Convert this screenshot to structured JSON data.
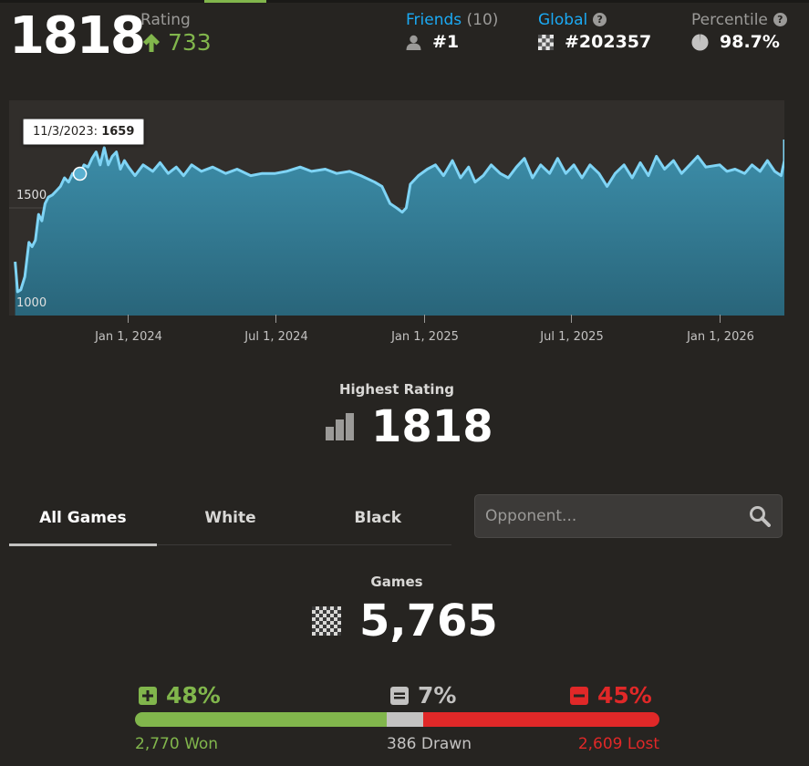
{
  "header": {
    "current_rating": "1818",
    "rating_label": "Rating",
    "rating_change": "733",
    "friends_label": "Friends",
    "friends_count": "(10)",
    "friends_rank": "#1",
    "global_label": "Global",
    "global_rank": "#202357",
    "percentile_label": "Percentile",
    "percentile_value": "98.7%"
  },
  "chart_data": {
    "type": "area",
    "x_tick_labels": [
      "Jan 1, 2024",
      "Jul 1, 2024",
      "Jan 1, 2025",
      "Jul 1, 2025",
      "Jan 1, 2026"
    ],
    "y_tick_labels": [
      "1000",
      "1500"
    ],
    "ylim": [
      950,
      1950
    ],
    "series": [
      {
        "points": [
          [
            "2023-08-15",
            1250
          ],
          [
            "2023-08-18",
            1110
          ],
          [
            "2023-08-22",
            1120
          ],
          [
            "2023-08-27",
            1180
          ],
          [
            "2023-09-01",
            1340
          ],
          [
            "2023-09-05",
            1320
          ],
          [
            "2023-09-09",
            1350
          ],
          [
            "2023-09-13",
            1470
          ],
          [
            "2023-09-17",
            1440
          ],
          [
            "2023-09-21",
            1520
          ],
          [
            "2023-09-25",
            1550
          ],
          [
            "2023-09-30",
            1560
          ],
          [
            "2023-10-05",
            1580
          ],
          [
            "2023-10-10",
            1600
          ],
          [
            "2023-10-15",
            1640
          ],
          [
            "2023-10-20",
            1620
          ],
          [
            "2023-10-25",
            1660
          ],
          [
            "2023-10-30",
            1640
          ],
          [
            "2023-11-03",
            1659
          ],
          [
            "2023-11-08",
            1700
          ],
          [
            "2023-11-13",
            1690
          ],
          [
            "2023-11-18",
            1730
          ],
          [
            "2023-11-23",
            1760
          ],
          [
            "2023-11-28",
            1700
          ],
          [
            "2023-12-03",
            1780
          ],
          [
            "2023-12-08",
            1700
          ],
          [
            "2023-12-13",
            1740
          ],
          [
            "2023-12-18",
            1760
          ],
          [
            "2023-12-23",
            1680
          ],
          [
            "2023-12-28",
            1720
          ],
          [
            "2024-01-02",
            1690
          ],
          [
            "2024-01-10",
            1650
          ],
          [
            "2024-01-20",
            1700
          ],
          [
            "2024-02-01",
            1670
          ],
          [
            "2024-02-10",
            1710
          ],
          [
            "2024-02-20",
            1660
          ],
          [
            "2024-03-01",
            1690
          ],
          [
            "2024-03-10",
            1650
          ],
          [
            "2024-03-20",
            1700
          ],
          [
            "2024-04-01",
            1670
          ],
          [
            "2024-04-15",
            1690
          ],
          [
            "2024-05-01",
            1660
          ],
          [
            "2024-05-15",
            1680
          ],
          [
            "2024-06-01",
            1650
          ],
          [
            "2024-06-15",
            1660
          ],
          [
            "2024-07-01",
            1660
          ],
          [
            "2024-07-15",
            1670
          ],
          [
            "2024-08-01",
            1690
          ],
          [
            "2024-08-15",
            1670
          ],
          [
            "2024-09-01",
            1680
          ],
          [
            "2024-09-15",
            1660
          ],
          [
            "2024-10-01",
            1670
          ],
          [
            "2024-10-15",
            1650
          ],
          [
            "2024-11-01",
            1620
          ],
          [
            "2024-11-10",
            1600
          ],
          [
            "2024-11-20",
            1520
          ],
          [
            "2024-11-28",
            1500
          ],
          [
            "2024-12-05",
            1480
          ],
          [
            "2024-12-10",
            1500
          ],
          [
            "2024-12-15",
            1610
          ],
          [
            "2024-12-25",
            1650
          ],
          [
            "2025-01-05",
            1680
          ],
          [
            "2025-01-15",
            1700
          ],
          [
            "2025-01-25",
            1650
          ],
          [
            "2025-02-05",
            1720
          ],
          [
            "2025-02-15",
            1640
          ],
          [
            "2025-02-25",
            1690
          ],
          [
            "2025-03-05",
            1620
          ],
          [
            "2025-03-15",
            1650
          ],
          [
            "2025-03-25",
            1700
          ],
          [
            "2025-04-05",
            1660
          ],
          [
            "2025-04-15",
            1640
          ],
          [
            "2025-04-25",
            1690
          ],
          [
            "2025-05-05",
            1730
          ],
          [
            "2025-05-15",
            1640
          ],
          [
            "2025-05-25",
            1700
          ],
          [
            "2025-06-05",
            1660
          ],
          [
            "2025-06-15",
            1730
          ],
          [
            "2025-06-25",
            1660
          ],
          [
            "2025-07-05",
            1700
          ],
          [
            "2025-07-15",
            1640
          ],
          [
            "2025-07-25",
            1700
          ],
          [
            "2025-08-05",
            1660
          ],
          [
            "2025-08-15",
            1600
          ],
          [
            "2025-08-25",
            1660
          ],
          [
            "2025-09-05",
            1700
          ],
          [
            "2025-09-15",
            1640
          ],
          [
            "2025-09-25",
            1710
          ],
          [
            "2025-10-05",
            1650
          ],
          [
            "2025-10-15",
            1740
          ],
          [
            "2025-10-25",
            1680
          ],
          [
            "2025-11-05",
            1720
          ],
          [
            "2025-11-15",
            1660
          ],
          [
            "2025-11-25",
            1700
          ],
          [
            "2025-12-05",
            1740
          ],
          [
            "2025-12-15",
            1690
          ],
          [
            "2026-01-01",
            1700
          ],
          [
            "2026-01-10",
            1670
          ],
          [
            "2026-01-20",
            1680
          ],
          [
            "2026-02-01",
            1660
          ],
          [
            "2026-02-10",
            1700
          ],
          [
            "2026-02-20",
            1670
          ],
          [
            "2026-03-01",
            1720
          ],
          [
            "2026-03-10",
            1670
          ],
          [
            "2026-03-18",
            1650
          ],
          [
            "2026-03-25",
            1720
          ],
          [
            "2026-04-01",
            1818
          ]
        ]
      }
    ],
    "tooltip": {
      "date": "11/3/2023:",
      "value": "1659"
    }
  },
  "highest": {
    "label": "Highest Rating",
    "value": "1818"
  },
  "tabs": [
    {
      "label": "All Games"
    },
    {
      "label": "White"
    },
    {
      "label": "Black"
    }
  ],
  "search": {
    "placeholder": "Opponent..."
  },
  "games": {
    "label": "Games",
    "total": "5,765",
    "won_pct": "48%",
    "drawn_pct": "7%",
    "lost_pct": "45%",
    "won_count": "2,770 Won",
    "drawn_count": "386 Drawn",
    "lost_count": "2,609 Lost",
    "won_fraction": 0.48,
    "drawn_fraction": 0.07,
    "lost_fraction": 0.45
  },
  "colors": {
    "won": "#81b64c",
    "drawn": "#c3c2c1",
    "lost": "#e02828",
    "link": "#1baaf4",
    "line": "#7fd4f5"
  },
  "icons": {
    "rating_change": "arrow-up-icon",
    "friends": "person-icon",
    "global": "checkerboard-icon",
    "percentile": "pie-icon",
    "highest": "bar-chart-icon",
    "games": "checkerboard-icon",
    "search": "search-icon",
    "won": "plus-icon",
    "drawn": "equals-icon",
    "lost": "minus-icon"
  }
}
